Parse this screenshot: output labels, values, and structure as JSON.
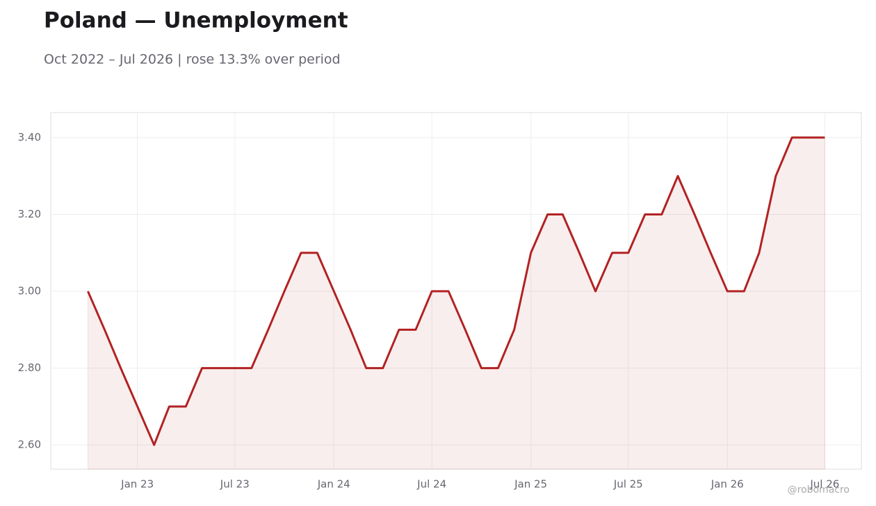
{
  "chart_data": {
    "type": "line",
    "title": "Poland — Unemployment",
    "subtitle": "Oct 2022 – Jul 2026 | rose 13.3% over period",
    "watermark": "@robomacro",
    "x": [
      "2022-10",
      "2022-11",
      "2022-12",
      "2023-01",
      "2023-02",
      "2023-03",
      "2023-04",
      "2023-05",
      "2023-06",
      "2023-07",
      "2023-08",
      "2023-09",
      "2023-10",
      "2023-11",
      "2023-12",
      "2024-01",
      "2024-02",
      "2024-03",
      "2024-04",
      "2024-05",
      "2024-06",
      "2024-07",
      "2024-08",
      "2024-09",
      "2024-10",
      "2024-11",
      "2024-12",
      "2025-01",
      "2025-02",
      "2025-03",
      "2025-04",
      "2025-05",
      "2025-06",
      "2025-07",
      "2025-08",
      "2025-09",
      "2025-10",
      "2025-11",
      "2025-12",
      "2026-01",
      "2026-02",
      "2026-03",
      "2026-04",
      "2026-05",
      "2026-06",
      "2026-07"
    ],
    "series": [
      {
        "name": "Unemployment",
        "color": "#b22222",
        "values": [
          3.0,
          2.9,
          2.8,
          2.7,
          2.6,
          2.7,
          2.7,
          2.8,
          2.8,
          2.8,
          2.8,
          2.9,
          3.0,
          3.1,
          3.1,
          3.0,
          2.9,
          2.8,
          2.8,
          2.9,
          2.9,
          3.0,
          3.0,
          2.9,
          2.8,
          2.8,
          2.9,
          3.1,
          3.2,
          3.2,
          3.1,
          3.0,
          3.1,
          3.1,
          3.2,
          3.2,
          3.3,
          3.2,
          3.1,
          3.0,
          3.0,
          3.1,
          3.3,
          3.4,
          3.4,
          3.4
        ]
      }
    ],
    "xlim": [
      "2022-07-24",
      "2026-09-07"
    ],
    "xticks": [
      {
        "value": "2023-01",
        "label": "Jan 23"
      },
      {
        "value": "2023-07",
        "label": "Jul 23"
      },
      {
        "value": "2024-01",
        "label": "Jan 24"
      },
      {
        "value": "2024-07",
        "label": "Jul 24"
      },
      {
        "value": "2025-01",
        "label": "Jan 25"
      },
      {
        "value": "2025-07",
        "label": "Jul 25"
      },
      {
        "value": "2026-01",
        "label": "Jan 26"
      },
      {
        "value": "2026-07",
        "label": "Jul 26"
      }
    ],
    "ylim": [
      2.537,
      3.465
    ],
    "yticks": [
      {
        "value": 2.6,
        "label": "2.60"
      },
      {
        "value": 2.8,
        "label": "2.80"
      },
      {
        "value": 3.0,
        "label": "3.00"
      },
      {
        "value": 3.2,
        "label": "3.20"
      },
      {
        "value": 3.4,
        "label": "3.40"
      }
    ],
    "grid": true,
    "area_fill": true
  }
}
